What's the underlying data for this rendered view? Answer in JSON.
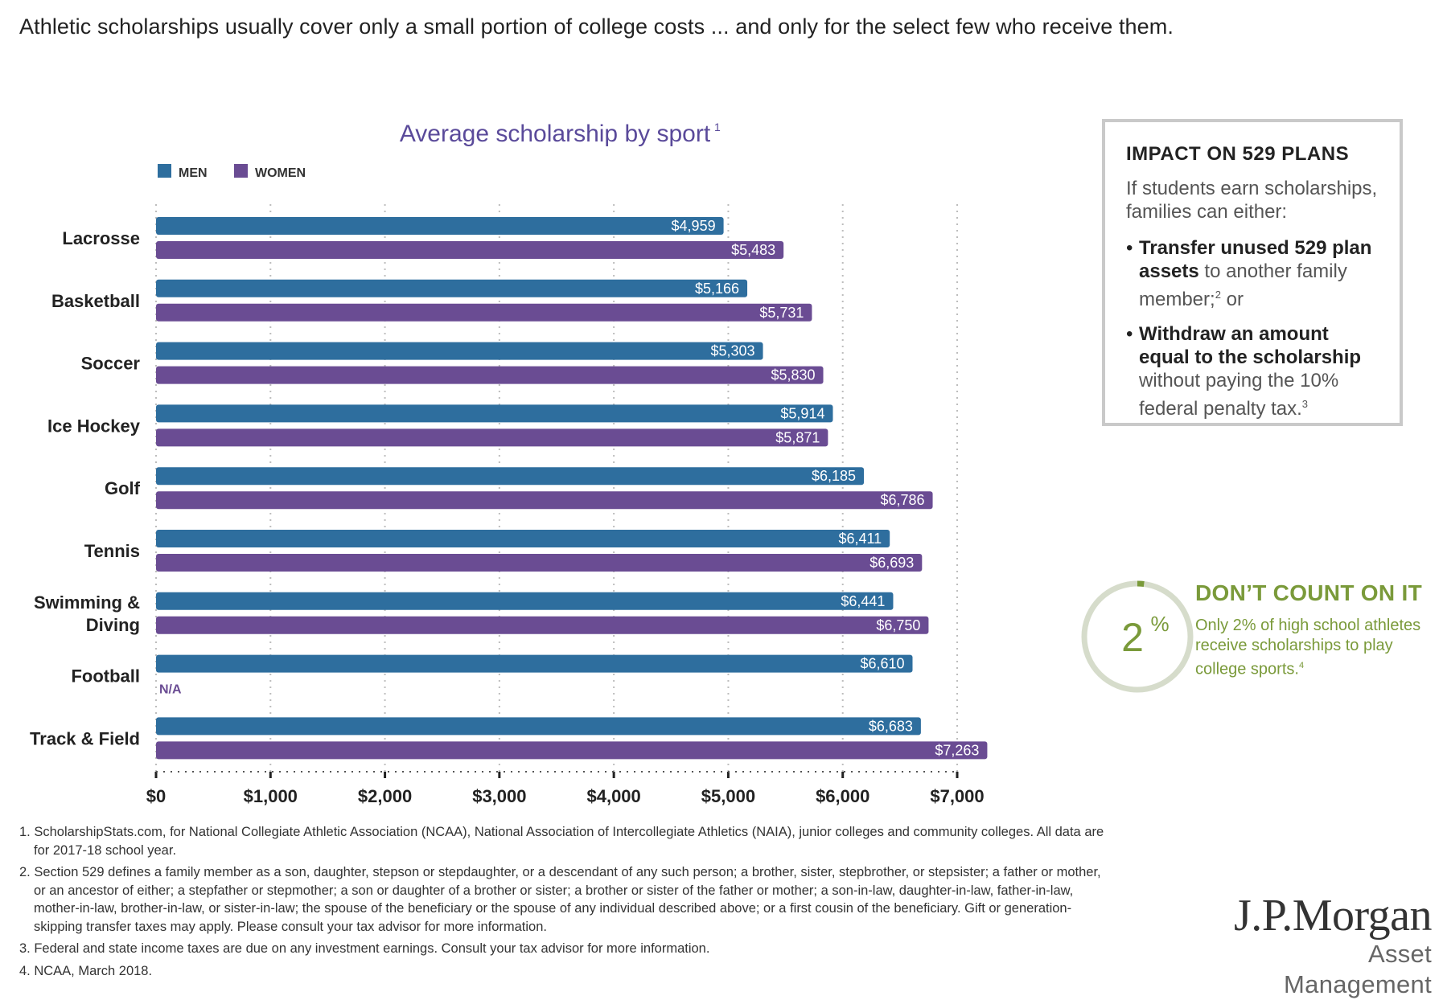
{
  "headline": "Athletic scholarships usually cover only a small portion of college costs ... and only for the select few who receive them.",
  "chart_data": {
    "type": "bar",
    "orientation": "horizontal",
    "title": "Average scholarship by sport",
    "title_footnote": "1",
    "xlabel": "",
    "ylabel": "",
    "xlim": [
      0,
      7000
    ],
    "xticks": [
      0,
      1000,
      2000,
      3000,
      4000,
      5000,
      6000,
      7000
    ],
    "xtick_labels": [
      "$0",
      "$1,000",
      "$2,000",
      "$3,000",
      "$4,000",
      "$5,000",
      "$6,000",
      "$7,000"
    ],
    "grid": true,
    "legend_position": "top-left",
    "categories": [
      "Lacrosse",
      "Basketball",
      "Soccer",
      "Ice Hockey",
      "Golf",
      "Tennis",
      "Swimming & Diving",
      "Football",
      "Track & Field"
    ],
    "category_lines": [
      [
        "Lacrosse"
      ],
      [
        "Basketball"
      ],
      [
        "Soccer"
      ],
      [
        "Ice Hockey"
      ],
      [
        "Golf"
      ],
      [
        "Tennis"
      ],
      [
        "Swimming &",
        "Diving"
      ],
      [
        "Football"
      ],
      [
        "Track & Field"
      ]
    ],
    "series": [
      {
        "name": "MEN",
        "color": "#2e6e9e",
        "values": [
          4959,
          5166,
          5303,
          5914,
          6185,
          6411,
          6441,
          6610,
          6683
        ],
        "labels": [
          "$4,959",
          "$5,166",
          "$5,303",
          "$5,914",
          "$6,185",
          "$6,411",
          "$6,441",
          "$6,610",
          "$6,683"
        ]
      },
      {
        "name": "WOMEN",
        "color": "#6a4c93",
        "values": [
          5483,
          5731,
          5830,
          5871,
          6786,
          6693,
          6750,
          null,
          7263
        ],
        "labels": [
          "$5,483",
          "$5,731",
          "$5,830",
          "$5,871",
          "$6,786",
          "$6,693",
          "$6,750",
          "N/A",
          "$7,263"
        ]
      }
    ]
  },
  "panel": {
    "title": "IMPACT ON 529 PLANS",
    "intro": "If students earn scholarships, families can either:",
    "bullet1_bold": "Transfer unused 529 plan assets",
    "bullet1_rest": " to another family member;",
    "bullet1_sup": "2",
    "bullet1_end": " or",
    "bullet2_bold": "Withdraw an amount equal to the scholarship",
    "bullet2_rest": " without paying the 10% federal penalty tax.",
    "bullet2_sup": "3"
  },
  "callout": {
    "value": 2,
    "value_text": "2",
    "percent_sign": "%",
    "title": "DON’T COUNT ON IT",
    "text": "Only 2% of high school athletes receive scholarships to play college sports.",
    "sup": "4",
    "ring_color": "#d6dccb",
    "accent_color": "#7a9a3a"
  },
  "footnotes": [
    "1. ScholarshipStats.com, for National Collegiate Athletic Association (NCAA), National Association of Intercollegiate Athletics (NAIA), junior colleges and community colleges. All data are for 2017-18 school year.",
    "2. Section 529 defines a family member as a son, daughter, stepson or stepdaughter, or a descendant of any such person; a brother, sister, stepbrother, or stepsister; a father or mother, or an ancestor of either; a stepfather or stepmother; a son or daughter of a brother or sister; a brother or sister of the father or mother; a son-in-law, daughter-in-law, father-in-law, mother-in-law, brother-in-law, or sister-in-law; the spouse of the beneficiary or the spouse of any individual described above; or a first cousin of the beneficiary. Gift or generation-skipping transfer taxes may apply. Please consult your tax advisor for more information.",
    "3. Federal and state income taxes are due on any investment earnings. Consult your tax advisor for more information.",
    "4. NCAA, March 2018."
  ],
  "logo": {
    "brand": "J.P.Morgan",
    "sub": "Asset Management"
  }
}
